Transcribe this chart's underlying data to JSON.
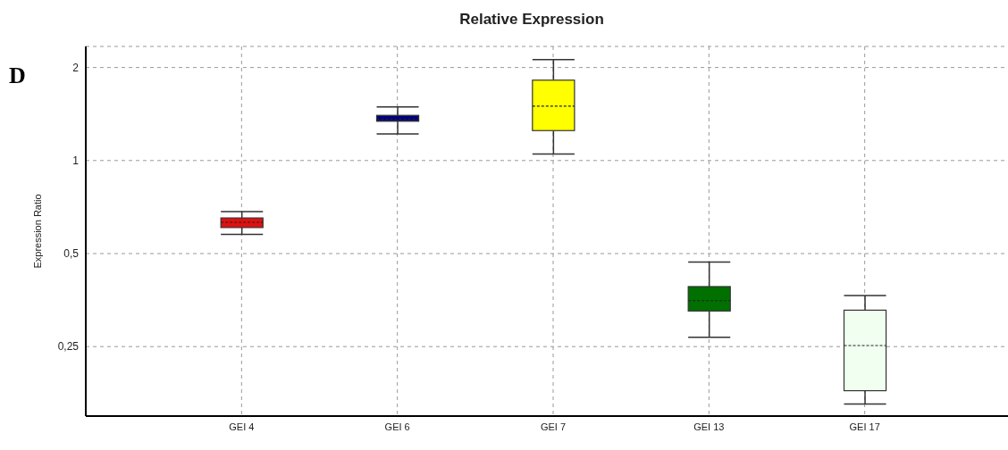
{
  "chart_data": {
    "type": "box",
    "title": "Relative Expression",
    "ylabel": "Expression Ratio",
    "annotations": [
      "D"
    ],
    "categories": [
      "GEI 4",
      "GEI 6",
      "GEI 7",
      "GEI 13",
      "GEI 17"
    ],
    "colors": [
      "#e01010",
      "#000080",
      "#ffff00",
      "#007000",
      "#f0fff0"
    ],
    "boxes": [
      {
        "low": 0.577,
        "q1": 0.607,
        "median": 0.631,
        "q3": 0.652,
        "high": 0.683
      },
      {
        "low": 1.22,
        "q1": 1.34,
        "median": 1.36,
        "q3": 1.4,
        "high": 1.49
      },
      {
        "low": 1.05,
        "q1": 1.25,
        "median": 1.5,
        "q3": 1.82,
        "high": 2.12
      },
      {
        "low": 0.268,
        "q1": 0.326,
        "median": 0.352,
        "q3": 0.391,
        "high": 0.469
      },
      {
        "low": 0.163,
        "q1": 0.18,
        "median": 0.252,
        "q3": 0.328,
        "high": 0.366
      }
    ],
    "log": true,
    "ylim": [
      0.149,
      2.34
    ],
    "yticks": [
      {
        "value": 0.25,
        "label": "0,25"
      },
      {
        "value": 0.5,
        "label": "0,5"
      },
      {
        "value": 1,
        "label": "1"
      },
      {
        "value": 2,
        "label": "2"
      }
    ],
    "grid": true
  }
}
